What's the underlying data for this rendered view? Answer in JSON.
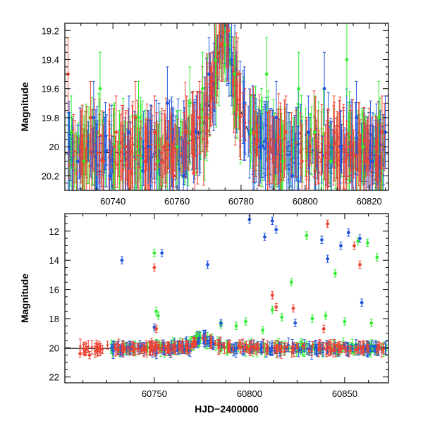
{
  "colors": {
    "green": "#33ee33",
    "blue": "#2255dd",
    "red": "#ee4433",
    "model": "#000000"
  },
  "chart_data": [
    {
      "type": "scatter",
      "panel": "top",
      "xlabel": "",
      "ylabel": "Magnitude",
      "xlim": [
        60725,
        60826
      ],
      "ylim": [
        20.3,
        19.15
      ],
      "y_inverted": true,
      "xticks": [
        60740,
        60760,
        60780,
        60800,
        60820
      ],
      "yticks": [
        19.2,
        19.4,
        19.6,
        19.8,
        20,
        20.2
      ],
      "xtick_labels": [
        "60740",
        "60760",
        "60780",
        "60800",
        "60820"
      ],
      "ytick_labels": [
        "19.2",
        "19.4",
        "19.6",
        "19.8",
        "20",
        "20.2"
      ],
      "model_curve": {
        "x": [
          60725,
          60735,
          60745,
          60755,
          60762,
          60766,
          60769,
          60771,
          60773,
          60774,
          60775,
          60776,
          60777,
          60779,
          60782,
          60786,
          60790,
          60800,
          60810,
          60826
        ],
        "y": [
          20.04,
          20.04,
          20.04,
          20.03,
          20.0,
          19.93,
          19.8,
          19.6,
          19.35,
          19.22,
          19.2,
          19.25,
          19.45,
          19.7,
          19.88,
          19.98,
          20.02,
          20.04,
          20.04,
          20.04
        ]
      },
      "series": [
        {
          "color": "green",
          "x": [
            60727,
            60731,
            60736,
            60742,
            60748,
            60754,
            60760,
            60764,
            60768,
            60772,
            60775,
            60778,
            60783,
            60788,
            60793,
            60798,
            60803,
            60808,
            60813,
            60818,
            60823
          ],
          "y": [
            19.9,
            20.1,
            19.6,
            20.0,
            19.8,
            20.1,
            20.0,
            19.7,
            19.6,
            19.4,
            19.3,
            19.5,
            19.9,
            19.5,
            20.1,
            19.6,
            19.9,
            20.1,
            19.4,
            20.0,
            19.8
          ]
        },
        {
          "color": "blue",
          "x": [
            60729,
            60734,
            60739,
            60745,
            60751,
            60757,
            60762,
            60766,
            60770,
            60774,
            60777,
            60781,
            60786,
            60791,
            60796,
            60801,
            60806,
            60811,
            60816,
            60821,
            60825
          ],
          "y": [
            20.1,
            19.8,
            20.2,
            19.9,
            20.0,
            19.7,
            20.2,
            19.9,
            19.5,
            19.3,
            19.4,
            19.7,
            20.0,
            19.8,
            20.2,
            19.9,
            19.6,
            20.0,
            19.8,
            20.1,
            19.9
          ]
        },
        {
          "color": "red",
          "x": [
            60726,
            60730,
            60733,
            60737,
            60741,
            60744,
            60747,
            60750,
            60753,
            60756,
            60759,
            60763,
            60767,
            60771,
            60774,
            60776,
            60779,
            60784,
            60789,
            60794,
            60799,
            60804,
            60809,
            60814,
            60819,
            60824
          ],
          "y": [
            19.5,
            20.0,
            19.8,
            20.1,
            19.9,
            20.0,
            19.8,
            20.1,
            19.9,
            20.0,
            20.2,
            19.9,
            19.8,
            19.6,
            19.3,
            19.2,
            19.5,
            19.9,
            20.0,
            19.9,
            20.1,
            20.0,
            19.9,
            20.0,
            20.1,
            19.9
          ]
        }
      ]
    },
    {
      "type": "scatter",
      "panel": "bottom",
      "xlabel": "HJD−2400000",
      "ylabel": "Magnitude",
      "xlim": [
        60703,
        60873
      ],
      "ylim": [
        22.4,
        10.8
      ],
      "y_inverted": true,
      "xticks": [
        60750,
        60800,
        60850
      ],
      "yticks": [
        12,
        14,
        16,
        18,
        20,
        22
      ],
      "xtick_labels": [
        "60750",
        "60800",
        "60850"
      ],
      "ytick_labels": [
        "12",
        "14",
        "16",
        "18",
        "20",
        "22"
      ],
      "model_curve": {
        "x": [
          60703,
          60740,
          60760,
          60768,
          60773,
          60775,
          60777,
          60782,
          60790,
          60810,
          60873
        ],
        "y": [
          20.04,
          20.04,
          20.03,
          19.9,
          19.5,
          19.3,
          19.4,
          19.8,
          20.0,
          20.04,
          20.04
        ]
      },
      "series": [
        {
          "color": "green",
          "x": [
            60750,
            60751,
            60752,
            60772,
            60785,
            60793,
            60798,
            60807,
            60812,
            60817,
            60822,
            60830,
            60833,
            60840,
            60845,
            60850,
            60857,
            60862,
            60864,
            60867
          ],
          "y": [
            13.5,
            17.5,
            17.8,
            19.2,
            18.4,
            18.5,
            18.2,
            18.8,
            17.4,
            17.9,
            15.5,
            12.3,
            18.0,
            17.8,
            14.9,
            18.2,
            12.7,
            12.8,
            18.3,
            13.8
          ]
        },
        {
          "color": "blue",
          "x": [
            60733,
            60750,
            60754,
            60778,
            60785,
            60800,
            60808,
            60812,
            60814,
            60824,
            60838,
            60841,
            60848,
            60852,
            60858,
            60859
          ],
          "y": [
            14.0,
            18.6,
            13.5,
            14.3,
            18.3,
            11.2,
            12.4,
            11.3,
            11.9,
            18.3,
            12.6,
            13.9,
            13.0,
            12.1,
            12.5,
            16.9
          ]
        },
        {
          "color": "red",
          "x": [
            60711,
            60716,
            60721,
            60750,
            60751,
            60812,
            60814,
            60823,
            60839,
            60841,
            60855,
            60858
          ],
          "y": [
            20.4,
            20.5,
            20.0,
            14.5,
            18.7,
            16.4,
            17.2,
            17.3,
            18.7,
            11.5,
            13.0,
            14.3
          ]
        }
      ]
    }
  ]
}
